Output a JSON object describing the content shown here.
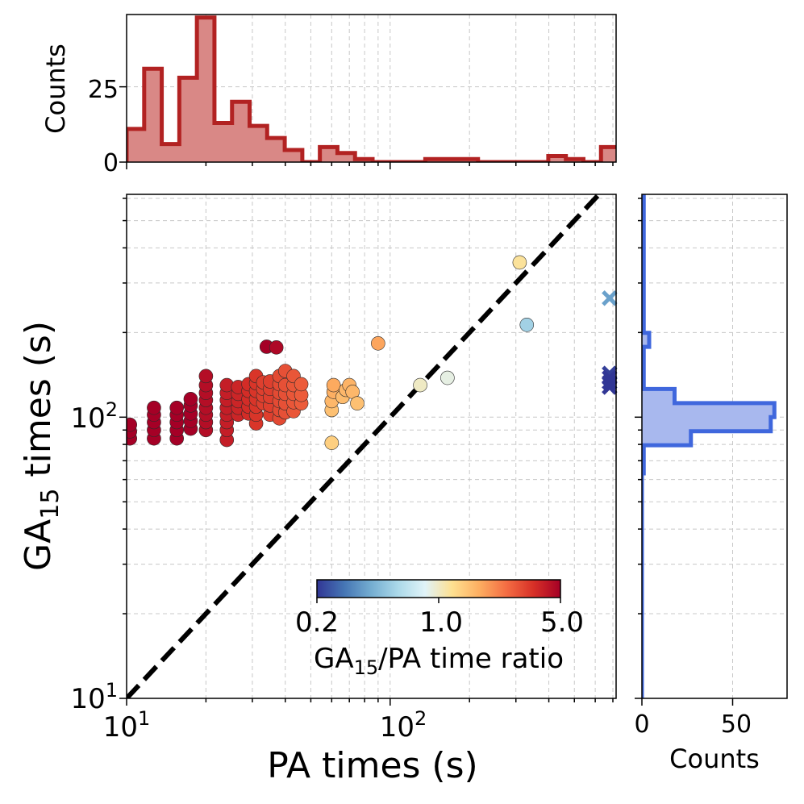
{
  "chart_data": [
    {
      "id": "scatter",
      "type": "scatter",
      "xscale": "log",
      "yscale": "log",
      "xlim": [
        10,
        720
      ],
      "ylim": [
        10,
        620
      ],
      "xlabel": "PA times (s)",
      "ylabel_main": "GA",
      "ylabel_sub": "15",
      "ylabel_tail": " times (s)",
      "xticks": [
        {
          "value": 10,
          "base": "10",
          "exp": "1"
        },
        {
          "value": 100,
          "base": "10",
          "exp": "2"
        }
      ],
      "yticks": [
        {
          "value": 10,
          "base": "10",
          "exp": "1"
        },
        {
          "value": 100,
          "base": "10",
          "exp": "2"
        }
      ],
      "diagonal": {
        "from": [
          10,
          10
        ],
        "to": [
          720,
          720
        ],
        "style": "dashed",
        "color": "#000000"
      },
      "points": [
        {
          "x": 10.3,
          "y": 84,
          "r": 6.0
        },
        {
          "x": 10.3,
          "y": 89,
          "r": 6.0
        },
        {
          "x": 10.3,
          "y": 94,
          "r": 6.0
        },
        {
          "x": 12.7,
          "y": 84,
          "r": 6.5
        },
        {
          "x": 12.7,
          "y": 90,
          "r": 6.5
        },
        {
          "x": 12.7,
          "y": 96,
          "r": 6.5
        },
        {
          "x": 12.7,
          "y": 102,
          "r": 6.5
        },
        {
          "x": 12.7,
          "y": 108,
          "r": 6.5
        },
        {
          "x": 15.5,
          "y": 84,
          "r": 5.5
        },
        {
          "x": 15.5,
          "y": 90,
          "r": 5.5
        },
        {
          "x": 15.5,
          "y": 96,
          "r": 5.5
        },
        {
          "x": 15.5,
          "y": 102,
          "r": 5.5
        },
        {
          "x": 15.5,
          "y": 108,
          "r": 5.5
        },
        {
          "x": 17.5,
          "y": 91,
          "r": 5.0
        },
        {
          "x": 17.5,
          "y": 97,
          "r": 5.0
        },
        {
          "x": 17.5,
          "y": 103,
          "r": 5.0
        },
        {
          "x": 17.5,
          "y": 110,
          "r": 5.0
        },
        {
          "x": 17.5,
          "y": 116,
          "r": 5.0
        },
        {
          "x": 20,
          "y": 90,
          "r": 4.5
        },
        {
          "x": 20,
          "y": 96,
          "r": 4.5
        },
        {
          "x": 20,
          "y": 102,
          "r": 4.5
        },
        {
          "x": 20,
          "y": 108,
          "r": 4.5
        },
        {
          "x": 20,
          "y": 115,
          "r": 4.5
        },
        {
          "x": 20,
          "y": 122,
          "r": 4.5
        },
        {
          "x": 20,
          "y": 130,
          "r": 4.5
        },
        {
          "x": 20,
          "y": 140,
          "r": 4.5
        },
        {
          "x": 24,
          "y": 83,
          "r": 4.0
        },
        {
          "x": 24,
          "y": 90,
          "r": 4.0
        },
        {
          "x": 24,
          "y": 96,
          "r": 4.0
        },
        {
          "x": 24,
          "y": 102,
          "r": 4.0
        },
        {
          "x": 24,
          "y": 108,
          "r": 4.0
        },
        {
          "x": 24,
          "y": 115,
          "r": 4.0
        },
        {
          "x": 24,
          "y": 122,
          "r": 4.0
        },
        {
          "x": 24,
          "y": 130,
          "r": 4.0
        },
        {
          "x": 26.5,
          "y": 102,
          "r": 3.8
        },
        {
          "x": 26.5,
          "y": 108,
          "r": 3.8
        },
        {
          "x": 26.5,
          "y": 114,
          "r": 3.8
        },
        {
          "x": 26.5,
          "y": 121,
          "r": 3.8
        },
        {
          "x": 26.5,
          "y": 128,
          "r": 3.8
        },
        {
          "x": 29,
          "y": 103,
          "r": 3.6
        },
        {
          "x": 29,
          "y": 109,
          "r": 3.6
        },
        {
          "x": 29,
          "y": 116,
          "r": 3.6
        },
        {
          "x": 29,
          "y": 124,
          "r": 3.6
        },
        {
          "x": 29,
          "y": 131,
          "r": 3.6
        },
        {
          "x": 31,
          "y": 95,
          "r": 3.4
        },
        {
          "x": 31,
          "y": 102,
          "r": 3.4
        },
        {
          "x": 31,
          "y": 109,
          "r": 3.4
        },
        {
          "x": 31,
          "y": 116,
          "r": 3.4
        },
        {
          "x": 31,
          "y": 124,
          "r": 3.4
        },
        {
          "x": 31,
          "y": 132,
          "r": 3.4
        },
        {
          "x": 31,
          "y": 140,
          "r": 3.4
        },
        {
          "x": 33,
          "y": 112,
          "r": 3.2
        },
        {
          "x": 33,
          "y": 119,
          "r": 3.2
        },
        {
          "x": 33,
          "y": 126,
          "r": 3.2
        },
        {
          "x": 33,
          "y": 133,
          "r": 3.2
        },
        {
          "x": 34,
          "y": 178,
          "r": 5.2
        },
        {
          "x": 37,
          "y": 177,
          "r": 4.7
        },
        {
          "x": 35,
          "y": 102,
          "r": 3.2
        },
        {
          "x": 35,
          "y": 110,
          "r": 3.2
        },
        {
          "x": 35,
          "y": 118,
          "r": 3.2
        },
        {
          "x": 35,
          "y": 126,
          "r": 3.2
        },
        {
          "x": 35,
          "y": 134,
          "r": 3.2
        },
        {
          "x": 38,
          "y": 99,
          "r": 3.0
        },
        {
          "x": 38,
          "y": 106,
          "r": 3.0
        },
        {
          "x": 38,
          "y": 114,
          "r": 3.0
        },
        {
          "x": 38,
          "y": 122,
          "r": 3.0
        },
        {
          "x": 38,
          "y": 131,
          "r": 3.0
        },
        {
          "x": 38,
          "y": 140,
          "r": 3.0
        },
        {
          "x": 40,
          "y": 104,
          "r": 2.9
        },
        {
          "x": 40,
          "y": 112,
          "r": 2.9
        },
        {
          "x": 40,
          "y": 121,
          "r": 2.9
        },
        {
          "x": 40,
          "y": 130,
          "r": 2.9
        },
        {
          "x": 40,
          "y": 146,
          "r": 2.9
        },
        {
          "x": 43,
          "y": 105,
          "r": 2.8
        },
        {
          "x": 43,
          "y": 113,
          "r": 2.8
        },
        {
          "x": 43,
          "y": 121,
          "r": 2.8
        },
        {
          "x": 43,
          "y": 130,
          "r": 2.8
        },
        {
          "x": 43,
          "y": 140,
          "r": 2.8
        },
        {
          "x": 46,
          "y": 112,
          "r": 2.7
        },
        {
          "x": 46,
          "y": 120,
          "r": 2.7
        },
        {
          "x": 46,
          "y": 131,
          "r": 2.7
        },
        {
          "x": 60,
          "y": 81,
          "r": 1.35
        },
        {
          "x": 60,
          "y": 106,
          "r": 1.5
        },
        {
          "x": 60,
          "y": 114,
          "r": 1.6
        },
        {
          "x": 61,
          "y": 123,
          "r": 1.7
        },
        {
          "x": 61,
          "y": 130,
          "r": 1.75
        },
        {
          "x": 66,
          "y": 118,
          "r": 1.55
        },
        {
          "x": 68,
          "y": 125,
          "r": 1.6
        },
        {
          "x": 70,
          "y": 130,
          "r": 1.65
        },
        {
          "x": 72,
          "y": 123,
          "r": 1.6
        },
        {
          "x": 75,
          "y": 112,
          "r": 1.5
        },
        {
          "x": 90,
          "y": 183,
          "r": 1.8
        },
        {
          "x": 130,
          "y": 130,
          "r": 1.0
        },
        {
          "x": 165,
          "y": 138,
          "r": 0.9
        },
        {
          "x": 330,
          "y": 213,
          "r": 0.55
        },
        {
          "x": 310,
          "y": 355,
          "r": 1.15
        }
      ],
      "crosses": [
        {
          "x": 680,
          "y": 265,
          "r": 0.38
        },
        {
          "x": 680,
          "y": 143,
          "r": 0.21
        },
        {
          "x": 680,
          "y": 133,
          "r": 0.2
        },
        {
          "x": 680,
          "y": 128,
          "r": 0.19
        },
        {
          "x": 680,
          "y": 138,
          "r": 0.2
        }
      ],
      "colormap_stops": [
        "#313695",
        "#4575b4",
        "#74add1",
        "#abd9e9",
        "#e0f3f8",
        "#fee090",
        "#fdae61",
        "#f46d43",
        "#d73027",
        "#a50026"
      ]
    },
    {
      "id": "top_hist",
      "type": "step-histogram",
      "orientation": "vertical",
      "ylabel": "Counts",
      "yticks": [
        0,
        25
      ],
      "ylim": [
        0,
        49
      ],
      "color": "#b22222",
      "fill": "#d98886",
      "bin_edges_log10": [
        1.0,
        1.0667,
        1.1333,
        1.2,
        1.2667,
        1.3333,
        1.4,
        1.4667,
        1.5333,
        1.6,
        1.6667,
        1.7333,
        1.8,
        1.8667,
        1.9333,
        2.0,
        2.0667,
        2.1333,
        2.2,
        2.2667,
        2.3333,
        2.4,
        2.4667,
        2.5333,
        2.6,
        2.6667,
        2.7333,
        2.8,
        2.8667
      ],
      "counts": [
        11,
        31,
        6,
        28,
        48,
        13,
        20,
        12,
        8,
        4,
        0,
        5,
        3,
        1,
        0,
        0,
        0,
        1,
        1,
        1,
        0,
        0,
        0,
        0,
        2,
        1,
        0,
        5
      ]
    },
    {
      "id": "right_hist",
      "type": "step-histogram",
      "orientation": "horizontal",
      "xlabel": "Counts",
      "xticks": [
        0,
        50
      ],
      "xlim": [
        0,
        80
      ],
      "color": "#3f67dd",
      "fill": "#a8b8ee",
      "bin_edges_log10": [
        1.0,
        1.8,
        1.9,
        1.95,
        2.0,
        2.05,
        2.1,
        2.25,
        2.3,
        2.79
      ],
      "counts": [
        0,
        1,
        27,
        71,
        73,
        18,
        1,
        4,
        1
      ]
    },
    {
      "id": "colorbar",
      "type": "colorbar",
      "label_main": "GA",
      "label_sub": "15",
      "label_tail": "/PA time ratio",
      "ticks": [
        "0.2",
        "1.0",
        "5.0"
      ]
    }
  ]
}
